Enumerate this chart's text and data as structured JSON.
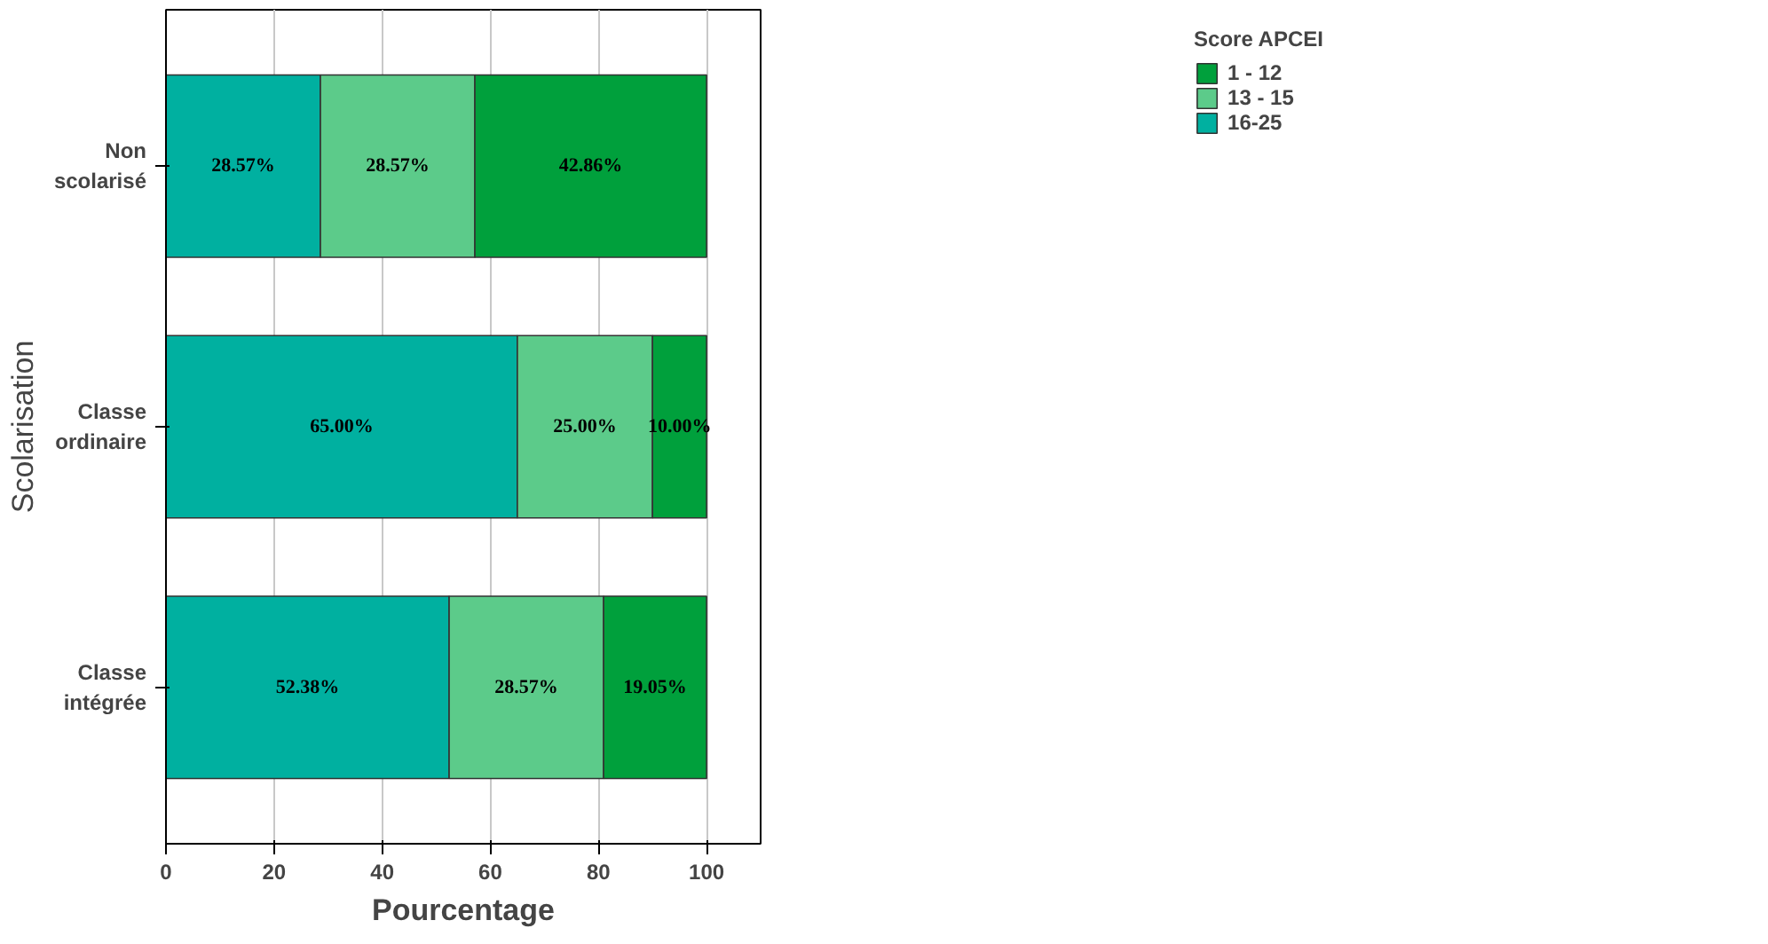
{
  "chart_data": {
    "type": "bar",
    "orientation": "horizontal",
    "stacked": true,
    "xlabel": "Pourcentage",
    "ylabel": "Scolarisation",
    "legend_title": "Score APCEI",
    "categories": [
      "Non scolarisé",
      "Classe ordinaire",
      "Classe intégrée"
    ],
    "series": [
      {
        "name": "16-25",
        "color": "#00b0a0",
        "values": [
          28.57,
          65.0,
          52.38
        ],
        "value_labels": [
          "28.57%",
          "65.00%",
          "52.38%"
        ]
      },
      {
        "name": "13 - 15",
        "color": "#5ccb8a",
        "values": [
          28.57,
          25.0,
          28.57
        ],
        "value_labels": [
          "28.57%",
          "25.00%",
          "28.57%"
        ]
      },
      {
        "name": "1 - 12",
        "color": "#00a03c",
        "values": [
          42.86,
          10.0,
          19.05
        ],
        "value_labels": [
          "42.86%",
          "10.00%",
          "19.05%"
        ]
      }
    ],
    "xlim": [
      0,
      110
    ],
    "xticks": [
      0,
      20,
      40,
      60,
      80,
      100
    ],
    "grid": "x",
    "legend": "top right"
  }
}
